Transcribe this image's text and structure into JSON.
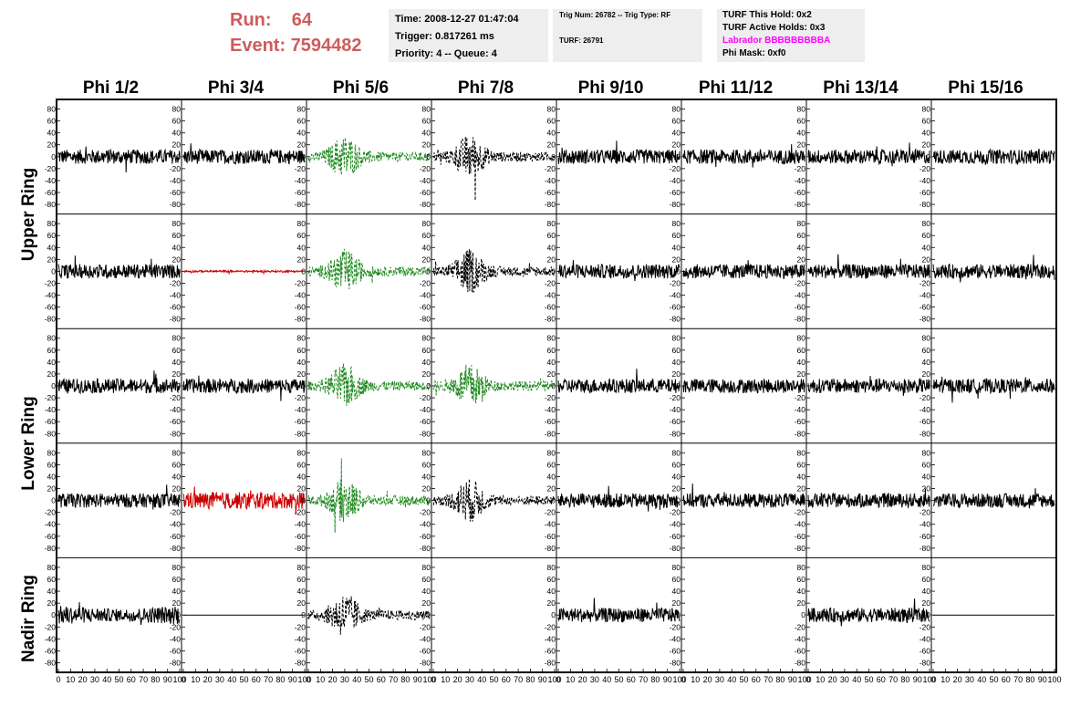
{
  "header": {
    "run_label": "Run:",
    "run_value": "64",
    "event_label": "Event:",
    "event_value": "7594482"
  },
  "info_time": {
    "time": "Time: 2008-12-27 01:47:04",
    "trigger": "Trigger: 0.817261 ms",
    "priority": "Priority: 4 -- Queue: 4"
  },
  "info_trig": {
    "trig": "Trig Num: 26782 -- Trig Type: RF",
    "turf": "TURF: 26791"
  },
  "info_turf": {
    "this_hold": "TURF This Hold: 0x2",
    "active_holds": "TURF Active Holds: 0x3",
    "labrador": "Labrador BBBBBBBBBA",
    "phi_mask": "Phi Mask: 0xf0",
    "labrador_color": "#ff00ff"
  },
  "chart_data": {
    "type": "line",
    "columns": [
      "Phi 1/2",
      "Phi 3/4",
      "Phi 5/6",
      "Phi 7/8",
      "Phi 9/10",
      "Phi 11/12",
      "Phi 13/14",
      "Phi 15/16"
    ],
    "ring_labels": [
      "Upper Ring",
      "Lower Ring",
      "Nadir Ring"
    ],
    "rows": 5,
    "row_ring": [
      0,
      0,
      1,
      1,
      2
    ],
    "y_ticks": [
      80,
      60,
      40,
      20,
      0,
      -20,
      -40,
      -60,
      -80
    ],
    "ylim": [
      -90,
      90
    ],
    "x_ticks": [
      0,
      10,
      20,
      30,
      40,
      50,
      60,
      70,
      80,
      90,
      100
    ],
    "xlim": [
      0,
      100
    ],
    "colors": {
      "normal": "#000000",
      "red": "#cc0000",
      "green": "#228b22"
    },
    "panels": [
      [
        "normal",
        "normal",
        "green",
        "dashed",
        "normal",
        "normal",
        "normal",
        "normal"
      ],
      [
        "normal",
        "red-flat",
        "green",
        "dashed",
        "normal",
        "normal",
        "normal",
        "normal"
      ],
      [
        "normal",
        "normal",
        "green",
        "green",
        "normal",
        "normal",
        "normal",
        "normal"
      ],
      [
        "normal",
        "red",
        "green",
        "dashed",
        "normal",
        "normal",
        "normal",
        "normal"
      ],
      [
        "normal",
        "flat",
        "dashed",
        "empty",
        "normal",
        "empty",
        "normal",
        "flat"
      ]
    ]
  }
}
